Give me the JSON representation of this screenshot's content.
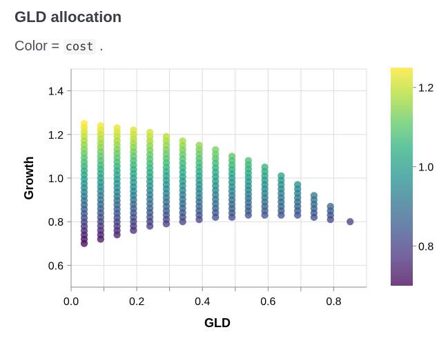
{
  "title": "GLD allocation",
  "subtitle": {
    "prefix": "Color = ",
    "field": "cost",
    "suffix": " ."
  },
  "chart_data": {
    "type": "scatter",
    "xlabel": "GLD",
    "ylabel": "Growth",
    "xlim": [
      0.0,
      0.9
    ],
    "ylim": [
      0.5,
      1.5
    ],
    "xticks": [
      "0.0",
      "0.2",
      "0.4",
      "0.6",
      "0.8"
    ],
    "yticks": [
      "0.6",
      "0.8",
      "1.0",
      "1.2",
      "1.4"
    ],
    "grid": true,
    "color_field": "cost",
    "color_scale": "viridis",
    "color_domain": [
      0.7,
      1.25
    ],
    "colorbar_ticks": [
      "0.8",
      "1.0",
      "1.2"
    ],
    "colorbar_tick_values": [
      0.8,
      1.0,
      1.2
    ],
    "legend_position": "right",
    "columns": [
      {
        "x": 0.04,
        "y_min": 0.7,
        "y_max": 1.25
      },
      {
        "x": 0.09,
        "y_min": 0.72,
        "y_max": 1.24
      },
      {
        "x": 0.14,
        "y_min": 0.74,
        "y_max": 1.23
      },
      {
        "x": 0.19,
        "y_min": 0.76,
        "y_max": 1.22
      },
      {
        "x": 0.24,
        "y_min": 0.78,
        "y_max": 1.21
      },
      {
        "x": 0.29,
        "y_min": 0.79,
        "y_max": 1.19
      },
      {
        "x": 0.34,
        "y_min": 0.8,
        "y_max": 1.17
      },
      {
        "x": 0.39,
        "y_min": 0.81,
        "y_max": 1.15
      },
      {
        "x": 0.44,
        "y_min": 0.82,
        "y_max": 1.13
      },
      {
        "x": 0.49,
        "y_min": 0.82,
        "y_max": 1.1
      },
      {
        "x": 0.54,
        "y_min": 0.83,
        "y_max": 1.08
      },
      {
        "x": 0.59,
        "y_min": 0.83,
        "y_max": 1.05
      },
      {
        "x": 0.64,
        "y_min": 0.83,
        "y_max": 1.01
      },
      {
        "x": 0.69,
        "y_min": 0.83,
        "y_max": 0.97
      },
      {
        "x": 0.74,
        "y_min": 0.82,
        "y_max": 0.92
      },
      {
        "x": 0.79,
        "y_min": 0.81,
        "y_max": 0.87
      },
      {
        "x": 0.85,
        "y_min": 0.8,
        "y_max": 0.8
      }
    ],
    "y_step": 0.02
  }
}
